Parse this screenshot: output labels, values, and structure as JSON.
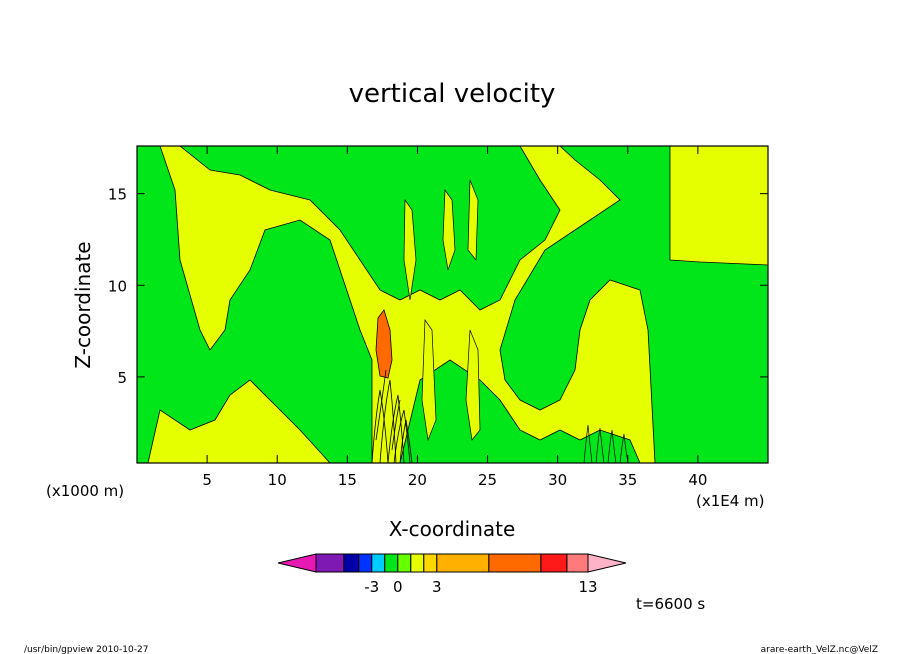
{
  "chart_data": {
    "type": "heatmap",
    "title": "vertical velocity",
    "xlabel": "X-coordinate",
    "ylabel": "Z-coordinate",
    "x_unit_label": "(x1000 m)",
    "x_scale_label": "(x1E4 m)",
    "xlim": [
      0,
      45
    ],
    "ylim": [
      0.3,
      17.6
    ],
    "xticks": [
      5,
      10,
      15,
      20,
      25,
      30,
      35,
      40
    ],
    "yticks": [
      5,
      10,
      15
    ],
    "colorbar": {
      "colors": [
        "#e619b3",
        "#7f19b3",
        "#0000a6",
        "#0033ff",
        "#00ccff",
        "#00e619",
        "#66ff00",
        "#e6ff00",
        "#ffd700",
        "#ffb000",
        "#ff6a00",
        "#ff1a1a",
        "#ff7a7a",
        "#ffb3c8"
      ],
      "tick_labels": [
        {
          "after_segment": 3,
          "label": "-3"
        },
        {
          "after_segment": 5,
          "label": "0"
        },
        {
          "after_segment": 8,
          "label": "3"
        },
        {
          "after_segment": 12,
          "label": "13"
        }
      ]
    },
    "fields": [
      {
        "value_class": "positive-weak",
        "color": "#e6ff00"
      },
      {
        "value_class": "near-zero",
        "color": "#00e619"
      },
      {
        "value_class": "positive-strong",
        "color": "#ff6a00"
      }
    ]
  },
  "annotations": {
    "time": "t=6600 s",
    "footer_left": "/usr/bin/gpview   2010-10-27",
    "footer_right": "arare-earth_VelZ.nc@VelZ"
  }
}
